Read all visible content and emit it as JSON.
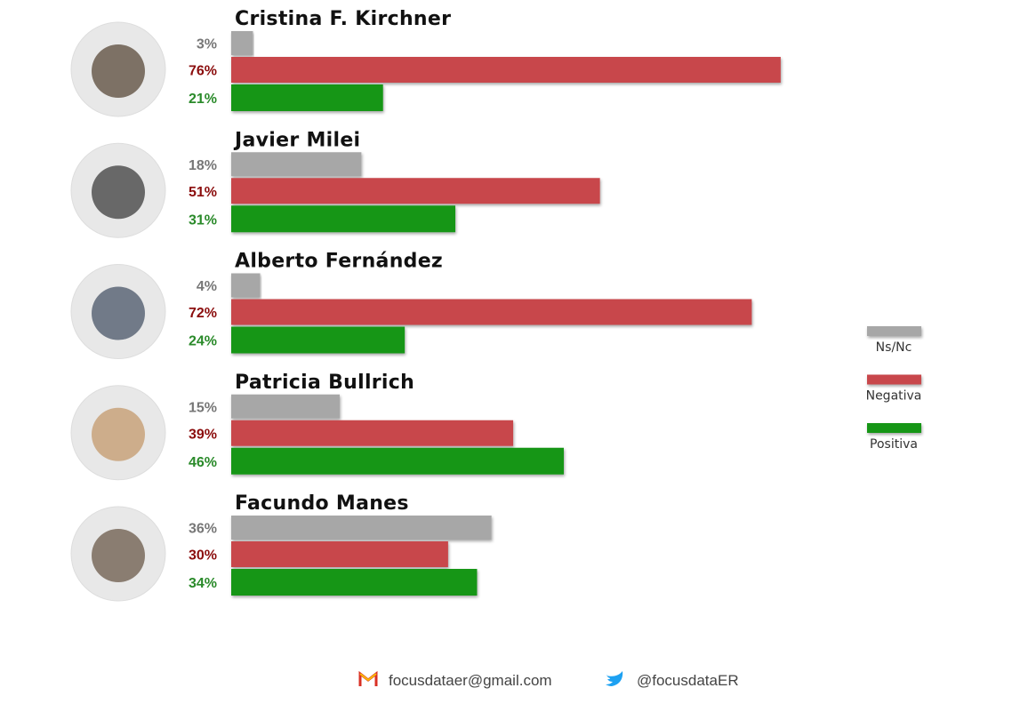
{
  "chart_data": {
    "type": "bar",
    "categories": [
      "Cristina F. Kirchner",
      "Javier Milei",
      "Alberto Fernández",
      "Patricia Bullrich",
      "Facundo Manes"
    ],
    "series": [
      {
        "name": "Ns/Nc",
        "color": "#a7a7a7",
        "label_color": "#777777",
        "values": [
          3,
          18,
          4,
          15,
          36
        ],
        "value_labels": [
          "3%",
          "18%",
          "4%",
          "15%",
          "36%"
        ]
      },
      {
        "name": "Negativa",
        "color": "#c8474b",
        "label_color": "#8b0d0d",
        "values": [
          76,
          51,
          72,
          39,
          30
        ],
        "value_labels": [
          "76%",
          "51%",
          "72%",
          "39%",
          "30%"
        ]
      },
      {
        "name": "Positiva",
        "color": "#149614",
        "label_color": "#2a8a2a",
        "values": [
          21,
          31,
          24,
          46,
          34
        ],
        "value_labels": [
          "21%",
          "31%",
          "24%",
          "46%",
          "34%"
        ]
      }
    ],
    "legend": "right"
  },
  "footer": {
    "email": "focusdataer@gmail.com",
    "twitter": "@focusdataER"
  }
}
